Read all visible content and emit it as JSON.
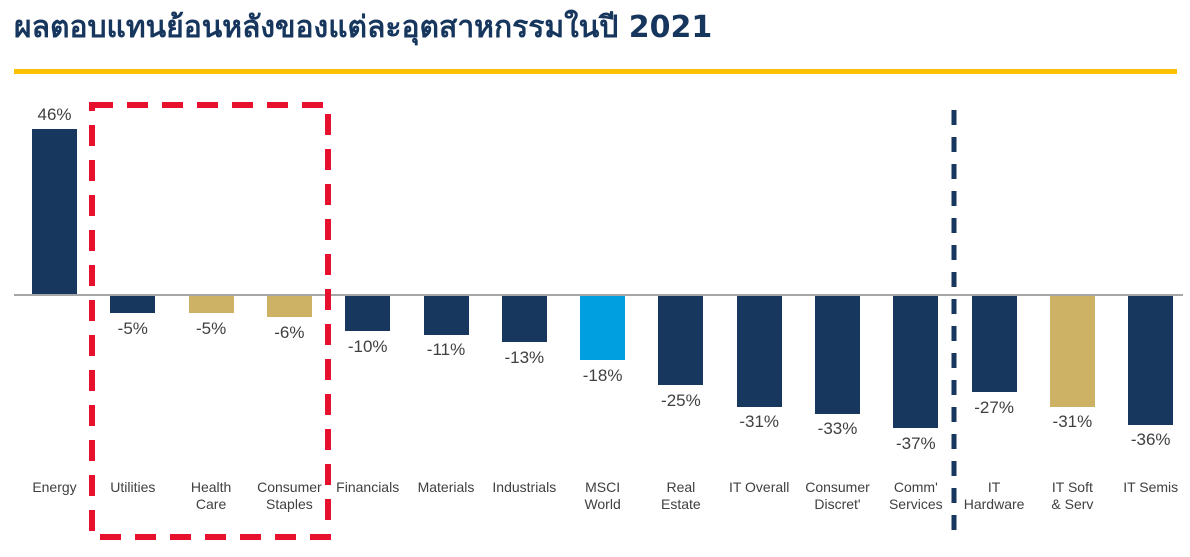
{
  "page": {
    "title": "ผลตอบแทนย้อนหลังของแต่ละอุตสาหกรรมในปี 2021",
    "title_color": "#17365D",
    "title_underline_color": "#FFC000"
  },
  "chart_data": {
    "type": "bar",
    "title": "ผลตอบแทนย้อนหลังของแต่ละอุตสาหกรรมในปี 2021",
    "unit": "%",
    "xlabel": "",
    "ylabel": "",
    "ylim": [
      -40,
      50
    ],
    "grid": false,
    "legend": false,
    "categories": [
      "Energy",
      "Utilities",
      "Health Care",
      "Consumer Staples",
      "Financials",
      "Materials",
      "Industrials",
      "MSCI World",
      "Real Estate",
      "IT Overall",
      "Consumer Discret'",
      "Comm' Services",
      "IT Hardware",
      "IT Soft & Serv",
      "IT Semis"
    ],
    "values": [
      46,
      -5,
      -5,
      -6,
      -10,
      -11,
      -13,
      -18,
      -25,
      -31,
      -33,
      -37,
      -27,
      -31,
      -36
    ],
    "value_labels": [
      "46%",
      "-5%",
      "-5%",
      "-6%",
      "-10%",
      "-11%",
      "-13%",
      "-18%",
      "-25%",
      "-31%",
      "-33%",
      "-37%",
      "-27%",
      "-31%",
      "-36%"
    ],
    "label_lines": [
      [
        "Energy"
      ],
      [
        "Utilities"
      ],
      [
        "Health",
        "Care"
      ],
      [
        "Consumer",
        "Staples"
      ],
      [
        "Financials"
      ],
      [
        "Materials"
      ],
      [
        "Industrials"
      ],
      [
        "MSCI",
        "World"
      ],
      [
        "Real",
        "Estate"
      ],
      [
        "IT Overall"
      ],
      [
        "Consumer",
        "Discret'"
      ],
      [
        "Comm'",
        "Services"
      ],
      [
        "IT",
        "Hardware"
      ],
      [
        "IT Soft",
        "& Serv"
      ],
      [
        "IT Semis"
      ]
    ],
    "bar_color_keys": [
      "navy",
      "navy",
      "gold",
      "gold",
      "navy",
      "navy",
      "navy",
      "light_blue",
      "navy",
      "navy",
      "navy",
      "navy",
      "navy",
      "gold",
      "navy"
    ],
    "palette": {
      "navy": "#17375E",
      "gold": "#CDB266",
      "light_blue": "#00A0E0"
    },
    "baseline_color": "#A6A6A6",
    "annotations": {
      "red_dashed_box": {
        "highlights": [
          "Utilities",
          "Health Care",
          "Consumer Staples"
        ],
        "color": "#E8112D"
      },
      "navy_dashed_separator": {
        "position": "between Comm' Services and IT Hardware",
        "color": "#17375E"
      }
    }
  }
}
